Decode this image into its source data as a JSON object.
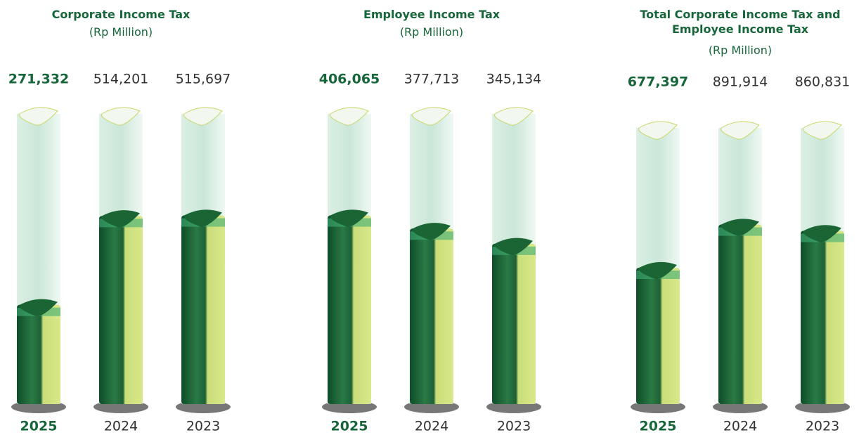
{
  "chart_data": [
    {
      "type": "bar",
      "title": "Corporate Income Tax",
      "subtitle": "(Rp Million)",
      "categories": [
        "2025",
        "2024",
        "2023"
      ],
      "values": [
        271332,
        514201,
        515697
      ],
      "value_labels": [
        "271,332",
        "514,201",
        "515,697"
      ],
      "color": "#1b6535"
    },
    {
      "type": "bar",
      "title": "Employee Income Tax",
      "subtitle": "(Rp Million)",
      "categories": [
        "2025",
        "2024",
        "2023"
      ],
      "values": [
        406065,
        377713,
        345134
      ],
      "value_labels": [
        "406,065",
        "377,713",
        "345,134"
      ],
      "color": "#1b6535"
    },
    {
      "type": "bar",
      "title": "Total Corporate Income Tax and Employee Income Tax",
      "subtitle": "(Rp Million)",
      "categories": [
        "2025",
        "2024",
        "2023"
      ],
      "values": [
        677397,
        891914,
        860831
      ],
      "value_labels": [
        "677,397",
        "891,914",
        "860,831"
      ],
      "color": "#1b6535"
    }
  ]
}
